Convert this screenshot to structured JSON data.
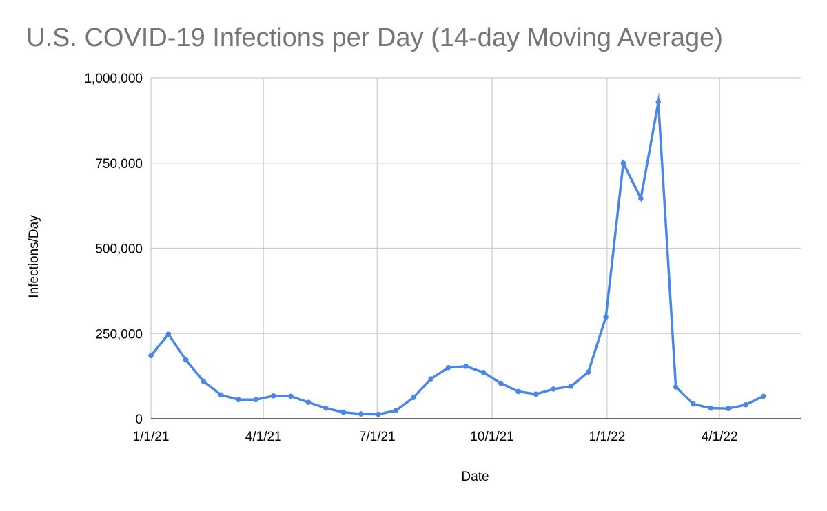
{
  "chart_data": {
    "type": "line",
    "title": "U.S. COVID-19 Infections per Day (14-day Moving Average)",
    "xlabel": "Date",
    "ylabel": "Infections/Day",
    "ylim": [
      0,
      1000000
    ],
    "y_ticks": [
      0,
      250000,
      500000,
      750000,
      1000000
    ],
    "y_tick_labels": [
      "0",
      "250,000",
      "500,000",
      "750,000",
      "1,000,000"
    ],
    "x_range": [
      "2021-01-01",
      "2022-06-05"
    ],
    "x_ticks": [
      "2021-01-01",
      "2021-04-01",
      "2021-07-01",
      "2021-10-01",
      "2022-01-01",
      "2022-04-01"
    ],
    "x_tick_labels": [
      "1/1/21",
      "4/1/21",
      "7/1/21",
      "10/1/21",
      "1/1/22",
      "4/1/22"
    ],
    "grid": true,
    "legend": "none",
    "colors": {
      "series": "#4a86e8",
      "grid": "#cccccc",
      "axis": "#333333"
    },
    "series": [
      {
        "name": "",
        "points": [
          {
            "x": "2021-01-01",
            "y": 185000
          },
          {
            "x": "2021-01-15",
            "y": 248000
          },
          {
            "x": "2021-01-29",
            "y": 172000
          },
          {
            "x": "2021-02-12",
            "y": 110000
          },
          {
            "x": "2021-02-26",
            "y": 70000
          },
          {
            "x": "2021-03-12",
            "y": 56000
          },
          {
            "x": "2021-03-26",
            "y": 56000
          },
          {
            "x": "2021-04-09",
            "y": 67000
          },
          {
            "x": "2021-04-23",
            "y": 66000
          },
          {
            "x": "2021-05-07",
            "y": 48000
          },
          {
            "x": "2021-05-21",
            "y": 31000
          },
          {
            "x": "2021-06-04",
            "y": 19000
          },
          {
            "x": "2021-06-18",
            "y": 14000
          },
          {
            "x": "2021-07-02",
            "y": 13000
          },
          {
            "x": "2021-07-16",
            "y": 24000
          },
          {
            "x": "2021-07-30",
            "y": 62000
          },
          {
            "x": "2021-08-13",
            "y": 117000
          },
          {
            "x": "2021-08-27",
            "y": 150000
          },
          {
            "x": "2021-09-10",
            "y": 154000
          },
          {
            "x": "2021-09-24",
            "y": 136000
          },
          {
            "x": "2021-10-08",
            "y": 104000
          },
          {
            "x": "2021-10-22",
            "y": 80000
          },
          {
            "x": "2021-11-05",
            "y": 72000
          },
          {
            "x": "2021-11-19",
            "y": 87000
          },
          {
            "x": "2021-12-03",
            "y": 95000
          },
          {
            "x": "2021-12-17",
            "y": 137000
          },
          {
            "x": "2021-12-31",
            "y": 298000
          },
          {
            "x": "2022-01-14",
            "y": 750000
          },
          {
            "x": "2022-01-28",
            "y": 646000
          },
          {
            "x": "2022-02-11",
            "y": 929000
          },
          {
            "x": "2022-02-25",
            "y": 93000
          },
          {
            "x": "2022-03-11",
            "y": 43000
          },
          {
            "x": "2022-03-25",
            "y": 31000
          },
          {
            "x": "2022-04-08",
            "y": 30000
          },
          {
            "x": "2022-04-22",
            "y": 41000
          },
          {
            "x": "2022-05-06",
            "y": 66000
          }
        ]
      }
    ]
  }
}
